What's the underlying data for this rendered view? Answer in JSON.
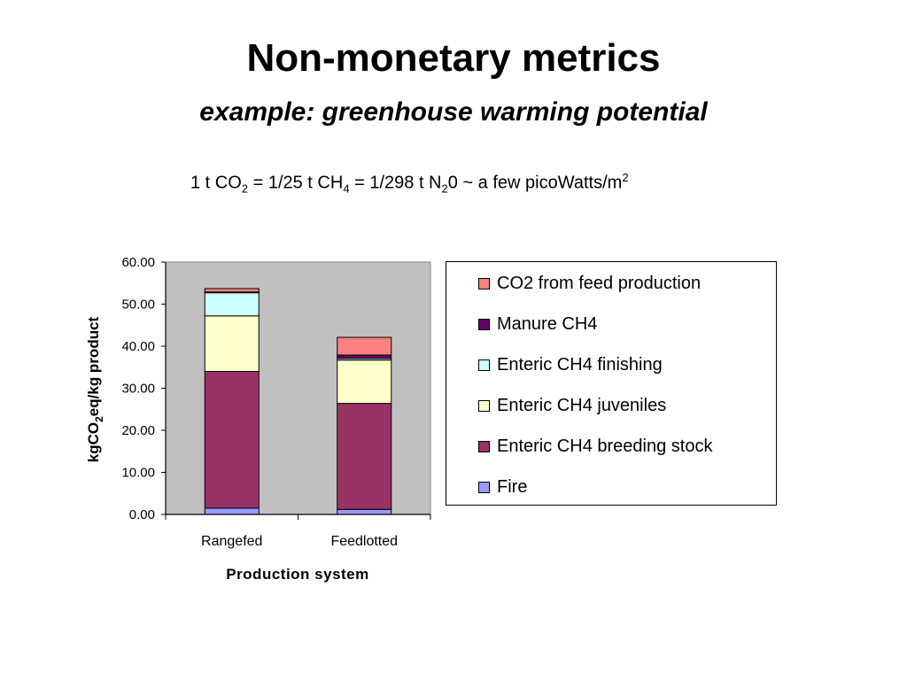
{
  "slide": {
    "title": "Non-monetary metrics",
    "subtitle": "example: greenhouse warming potential",
    "equation": {
      "p1": "1 t CO",
      "s1": "2",
      "p2": " = 1/25 t CH",
      "s2": "4",
      "p3": " = 1/298 t N",
      "s3": "2",
      "p4": "0 ~ a few picoWatts/m",
      "s4": "2"
    }
  },
  "chart_data": {
    "type": "bar",
    "stacked": true,
    "categories": [
      "Rangefed",
      "Feedlotted"
    ],
    "xlabel": "Production system",
    "ylabel": "kgCO2eq/kg product",
    "ylabel_parts": {
      "a": "kgCO",
      "sub": "2",
      "b": "eq/kg product"
    },
    "ylim": [
      0,
      60
    ],
    "yticks": [
      "0.00",
      "10.00",
      "20.00",
      "30.00",
      "40.00",
      "50.00",
      "60.00"
    ],
    "plot_background": "#c0c0c0",
    "legend_position": "right",
    "series": [
      {
        "name": "Fire",
        "color": "#9999ff",
        "values": [
          1.5,
          1.2
        ]
      },
      {
        "name": "Enteric CH4 breeding stock",
        "color": "#993366",
        "values": [
          32.5,
          25.2
        ]
      },
      {
        "name": "Enteric CH4 juveniles",
        "color": "#ffffcc",
        "values": [
          13.2,
          10.3
        ]
      },
      {
        "name": "Enteric CH4 finishing",
        "color": "#ccffff",
        "values": [
          5.5,
          0.4
        ]
      },
      {
        "name": "Manure CH4",
        "color": "#660066",
        "values": [
          0.2,
          0.8
        ]
      },
      {
        "name": "CO2 from feed production",
        "color": "#ff8080",
        "values": [
          0.8,
          4.2
        ]
      }
    ]
  }
}
